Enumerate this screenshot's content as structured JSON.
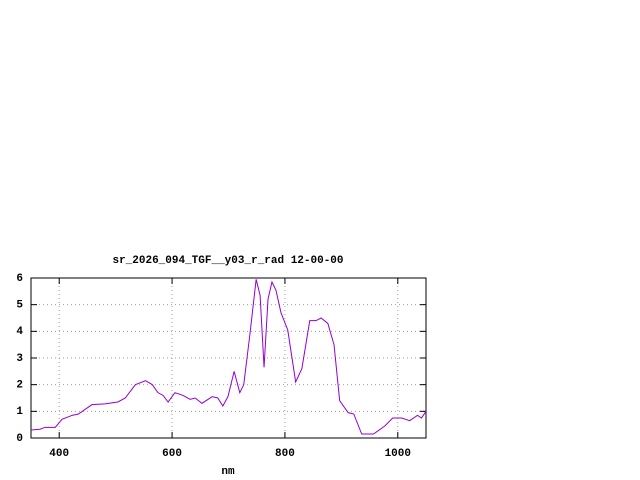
{
  "chart_data": {
    "type": "line",
    "title": "sr_2026_094_TGF__y03_r_rad 12-00-00",
    "x_label": "nm",
    "x": [
      350,
      366,
      375,
      393,
      405,
      423,
      434,
      458,
      481,
      504,
      517,
      535,
      553,
      565,
      575,
      584,
      593,
      605,
      619,
      632,
      641,
      653,
      671,
      681,
      690,
      699,
      710,
      720,
      727,
      738,
      749,
      756,
      763,
      770,
      777,
      784,
      793,
      805,
      819,
      830,
      844,
      855,
      864,
      876,
      887,
      897,
      912,
      922,
      936,
      957,
      977,
      991,
      1007,
      1021,
      1035,
      1042,
      1050
    ],
    "series": [
      {
        "name": "sr_2026_094_TGF__y03_r_rad",
        "color": "#9400d3",
        "values": [
          0.3,
          0.33,
          0.4,
          0.4,
          0.7,
          0.85,
          0.9,
          1.25,
          1.28,
          1.35,
          1.5,
          2.0,
          2.15,
          2.0,
          1.7,
          1.6,
          1.35,
          1.7,
          1.6,
          1.45,
          1.5,
          1.3,
          1.55,
          1.5,
          1.2,
          1.55,
          2.5,
          1.7,
          2.0,
          3.9,
          5.95,
          5.35,
          2.65,
          5.2,
          5.85,
          5.55,
          4.7,
          4.05,
          2.1,
          2.6,
          4.4,
          4.4,
          4.5,
          4.3,
          3.5,
          1.4,
          0.95,
          0.9,
          0.15,
          0.15,
          0.45,
          0.75,
          0.75,
          0.65,
          0.85,
          0.75,
          1.0
        ]
      }
    ],
    "xlim": [
      350,
      1050
    ],
    "ylim": [
      0,
      6
    ],
    "xticks": [
      400,
      600,
      800,
      1000
    ],
    "yticks": [
      0,
      1,
      2,
      3,
      4,
      5,
      6
    ],
    "grid": true
  }
}
